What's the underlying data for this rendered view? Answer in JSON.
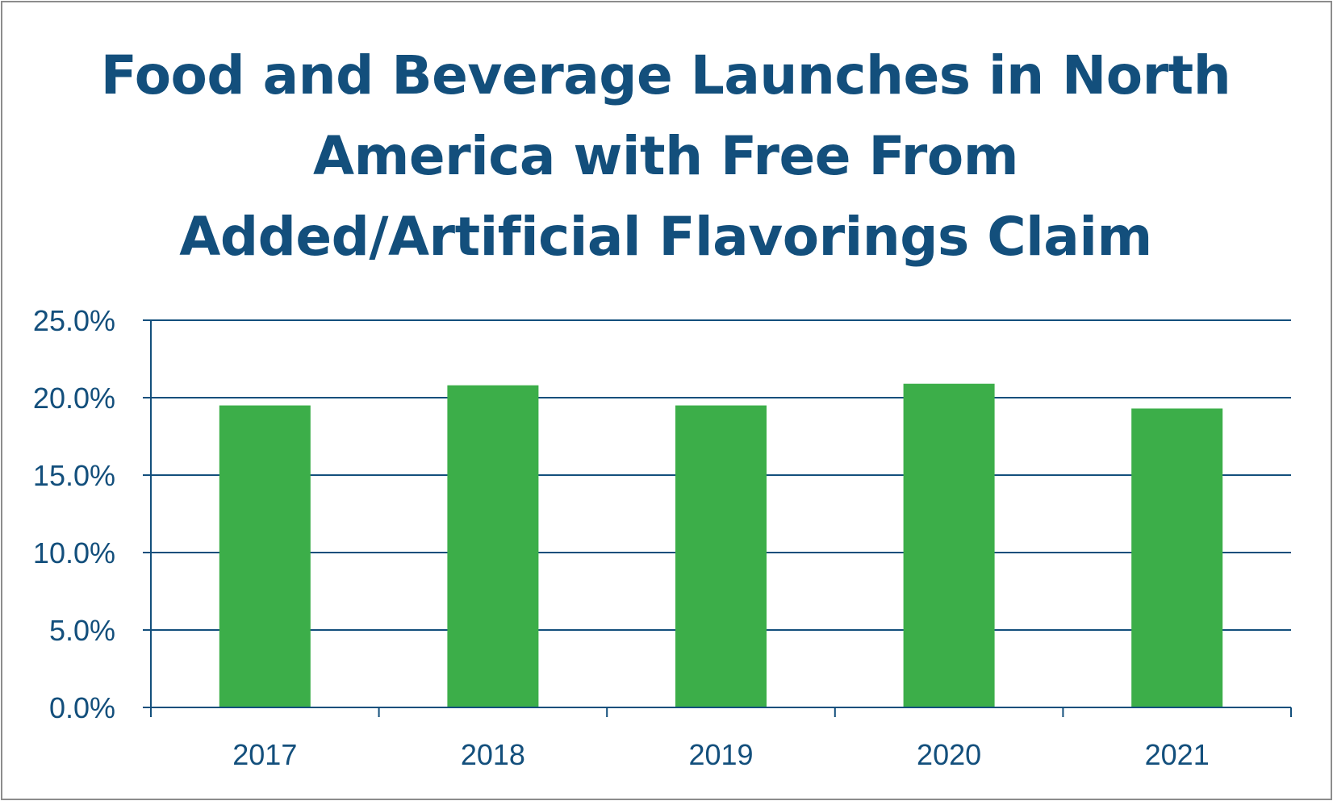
{
  "chart_data": {
    "type": "bar",
    "title_lines": [
      "Food and Beverage Launches in North",
      "America with Free From",
      "Added/Artificial Flavorings Claim"
    ],
    "categories": [
      "2017",
      "2018",
      "2019",
      "2020",
      "2021"
    ],
    "values": [
      19.5,
      20.8,
      19.5,
      20.9,
      19.3
    ],
    "value_format": "percent",
    "xlabel": "",
    "ylabel": "",
    "ylim": [
      0,
      25
    ],
    "y_ticks": [
      "0.0%",
      "5.0%",
      "10.0%",
      "15.0%",
      "20.0%",
      "25.0%"
    ],
    "grid": true,
    "legend": "none",
    "colors": {
      "bar": "#3cae49",
      "axis": "#134f7c",
      "text": "#134f7c",
      "title": "#134f7c",
      "border": "#8c8c8c"
    }
  }
}
